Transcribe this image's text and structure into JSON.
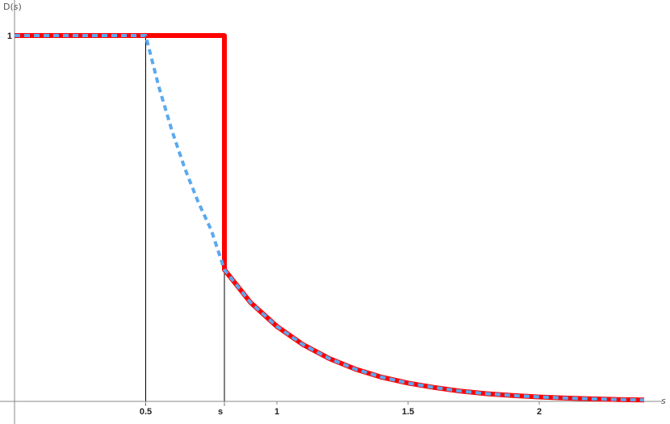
{
  "chart_data": {
    "type": "line",
    "title": "",
    "ylabel_prefix": "D(",
    "ylabel_var": "s",
    "ylabel_suffix": ")",
    "xlabel": "s",
    "xlim": [
      0,
      2.4
    ],
    "ylim": [
      0,
      1
    ],
    "x_ticks": [
      {
        "value": 0.5,
        "label": "0.5"
      },
      {
        "value": 0.8,
        "label": "s"
      },
      {
        "value": 1,
        "label": "1"
      },
      {
        "value": 1.5,
        "label": "1.5"
      },
      {
        "value": 2,
        "label": "2"
      }
    ],
    "y_ticks": [
      {
        "value": 1,
        "label": "1"
      }
    ],
    "vertical_markers": [
      0.5,
      0.8
    ],
    "series": [
      {
        "style": "solid",
        "color": "#ff0000",
        "points": [
          [
            0,
            1
          ],
          [
            0.8,
            1
          ],
          [
            0.8,
            0.36
          ],
          [
            0.9,
            0.27
          ],
          [
            1.0,
            0.205
          ],
          [
            1.1,
            0.155
          ],
          [
            1.2,
            0.117
          ],
          [
            1.3,
            0.088
          ],
          [
            1.4,
            0.066
          ],
          [
            1.5,
            0.05
          ],
          [
            1.6,
            0.038
          ],
          [
            1.7,
            0.028
          ],
          [
            1.8,
            0.021
          ],
          [
            1.9,
            0.016
          ],
          [
            2.0,
            0.012
          ],
          [
            2.1,
            0.009
          ],
          [
            2.2,
            0.007
          ],
          [
            2.3,
            0.005
          ],
          [
            2.4,
            0.004
          ]
        ]
      },
      {
        "style": "dashed",
        "color": "#5aa9f0",
        "points": [
          [
            0,
            1
          ],
          [
            0.5,
            1
          ],
          [
            0.55,
            0.86
          ],
          [
            0.6,
            0.74
          ],
          [
            0.65,
            0.635
          ],
          [
            0.7,
            0.545
          ],
          [
            0.75,
            0.468
          ],
          [
            0.8,
            0.36
          ],
          [
            0.9,
            0.27
          ],
          [
            1.0,
            0.205
          ],
          [
            1.1,
            0.155
          ],
          [
            1.2,
            0.117
          ],
          [
            1.3,
            0.088
          ],
          [
            1.4,
            0.066
          ],
          [
            1.5,
            0.05
          ],
          [
            1.6,
            0.038
          ],
          [
            1.7,
            0.028
          ],
          [
            1.8,
            0.021
          ],
          [
            1.9,
            0.016
          ],
          [
            2.0,
            0.012
          ],
          [
            2.1,
            0.009
          ],
          [
            2.2,
            0.007
          ],
          [
            2.3,
            0.005
          ],
          [
            2.4,
            0.004
          ]
        ]
      }
    ]
  }
}
